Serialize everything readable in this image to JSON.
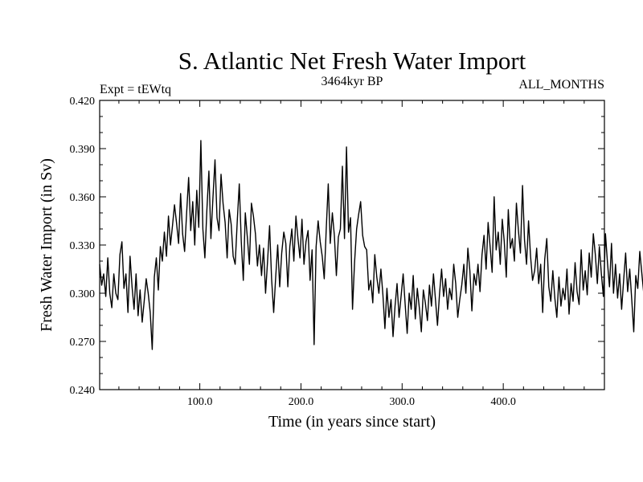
{
  "chart_data": {
    "type": "line",
    "title": "S. Atlantic Net Fresh Water Import",
    "subtitle": "3464kyr BP",
    "expt_label": "Expt = tEWtq",
    "months_label": "ALL_MONTHS",
    "xlabel": "Time (in years since start)",
    "ylabel": "Fresh Water Import (in Sv)",
    "xlim": [
      1,
      500
    ],
    "ylim": [
      0.24,
      0.42
    ],
    "x_ticks": [
      100,
      200,
      300,
      400
    ],
    "x_tick_labels": [
      "100.0",
      "200.0",
      "300.0",
      "400.0"
    ],
    "y_ticks": [
      0.24,
      0.27,
      0.3,
      0.33,
      0.36,
      0.39,
      0.42
    ],
    "y_tick_labels": [
      "0.240",
      "0.270",
      "0.300",
      "0.330",
      "0.360",
      "0.390",
      "0.420"
    ],
    "grid": false,
    "series": [
      {
        "name": "Fresh Water Import",
        "color": "#000000",
        "x_start": 1,
        "x_step": 2,
        "values": [
          0.318,
          0.305,
          0.312,
          0.298,
          0.322,
          0.3,
          0.291,
          0.312,
          0.3,
          0.296,
          0.324,
          0.332,
          0.303,
          0.312,
          0.288,
          0.323,
          0.304,
          0.29,
          0.312,
          0.286,
          0.302,
          0.282,
          0.295,
          0.309,
          0.3,
          0.288,
          0.265,
          0.31,
          0.322,
          0.302,
          0.329,
          0.32,
          0.338,
          0.323,
          0.348,
          0.33,
          0.342,
          0.355,
          0.344,
          0.331,
          0.362,
          0.337,
          0.326,
          0.35,
          0.372,
          0.339,
          0.357,
          0.33,
          0.364,
          0.341,
          0.395,
          0.34,
          0.322,
          0.352,
          0.376,
          0.334,
          0.36,
          0.383,
          0.347,
          0.339,
          0.374,
          0.356,
          0.344,
          0.322,
          0.352,
          0.343,
          0.323,
          0.318,
          0.345,
          0.368,
          0.332,
          0.308,
          0.35,
          0.335,
          0.318,
          0.356,
          0.348,
          0.337,
          0.317,
          0.33,
          0.311,
          0.328,
          0.3,
          0.32,
          0.342,
          0.309,
          0.288,
          0.31,
          0.33,
          0.304,
          0.325,
          0.338,
          0.331,
          0.304,
          0.329,
          0.34,
          0.32,
          0.348,
          0.334,
          0.322,
          0.346,
          0.318,
          0.332,
          0.339,
          0.308,
          0.327,
          0.268,
          0.329,
          0.345,
          0.332,
          0.323,
          0.309,
          0.34,
          0.368,
          0.331,
          0.35,
          0.336,
          0.311,
          0.335,
          0.34,
          0.379,
          0.334,
          0.391,
          0.338,
          0.347,
          0.29,
          0.319,
          0.34,
          0.349,
          0.357,
          0.336,
          0.329,
          0.327,
          0.302,
          0.308,
          0.294,
          0.324,
          0.31,
          0.3,
          0.315,
          0.299,
          0.278,
          0.303,
          0.285,
          0.296,
          0.273,
          0.292,
          0.306,
          0.285,
          0.298,
          0.312,
          0.293,
          0.275,
          0.3,
          0.29,
          0.311,
          0.284,
          0.303,
          0.291,
          0.276,
          0.302,
          0.294,
          0.283,
          0.305,
          0.292,
          0.312,
          0.296,
          0.28,
          0.3,
          0.315,
          0.298,
          0.309,
          0.29,
          0.303,
          0.296,
          0.318,
          0.306,
          0.285,
          0.296,
          0.305,
          0.318,
          0.3,
          0.328,
          0.314,
          0.289,
          0.312,
          0.305,
          0.318,
          0.301,
          0.324,
          0.336,
          0.315,
          0.344,
          0.329,
          0.313,
          0.36,
          0.327,
          0.338,
          0.318,
          0.346,
          0.332,
          0.31,
          0.352,
          0.328,
          0.334,
          0.32,
          0.356,
          0.339,
          0.325,
          0.367,
          0.333,
          0.318,
          0.345,
          0.323,
          0.308,
          0.314,
          0.328,
          0.306,
          0.318,
          0.288,
          0.321,
          0.334,
          0.304,
          0.295,
          0.314,
          0.297,
          0.285,
          0.31,
          0.292,
          0.303,
          0.296,
          0.315,
          0.287,
          0.306,
          0.295,
          0.319,
          0.301,
          0.293,
          0.327,
          0.302,
          0.314,
          0.299,
          0.325,
          0.31,
          0.337,
          0.324,
          0.306,
          0.329,
          0.312,
          0.298,
          0.337,
          0.319,
          0.304,
          0.331,
          0.3,
          0.318,
          0.297,
          0.312,
          0.29,
          0.308,
          0.325,
          0.301,
          0.315,
          0.296,
          0.276,
          0.311,
          0.303,
          0.326,
          0.312,
          0.299,
          0.322,
          0.308,
          0.315,
          0.303,
          0.326,
          0.31,
          0.298,
          0.313,
          0.296,
          0.305,
          0.317,
          0.294,
          0.333,
          0.31,
          0.318,
          0.34,
          0.308,
          0.296,
          0.325,
          0.302,
          0.317,
          0.306,
          0.296,
          0.313,
          0.303,
          0.322,
          0.306,
          0.314,
          0.343,
          0.302,
          0.326,
          0.312,
          0.298,
          0.322,
          0.308,
          0.333,
          0.309,
          0.289,
          0.316,
          0.301,
          0.331,
          0.297,
          0.316,
          0.33,
          0.276,
          0.299,
          0.32,
          0.333,
          0.304,
          0.296,
          0.315,
          0.288,
          0.307,
          0.295,
          0.28,
          0.306,
          0.295,
          0.316,
          0.321,
          0.294,
          0.308,
          0.286,
          0.327,
          0.311,
          0.306,
          0.301,
          0.315,
          0.299,
          0.31,
          0.323,
          0.314,
          0.297,
          0.258,
          0.32,
          0.309,
          0.291,
          0.317,
          0.309,
          0.293,
          0.284,
          0.325,
          0.307,
          0.301,
          0.294,
          0.304,
          0.289,
          0.308,
          0.316,
          0.272,
          0.302,
          0.296
        ]
      }
    ]
  }
}
